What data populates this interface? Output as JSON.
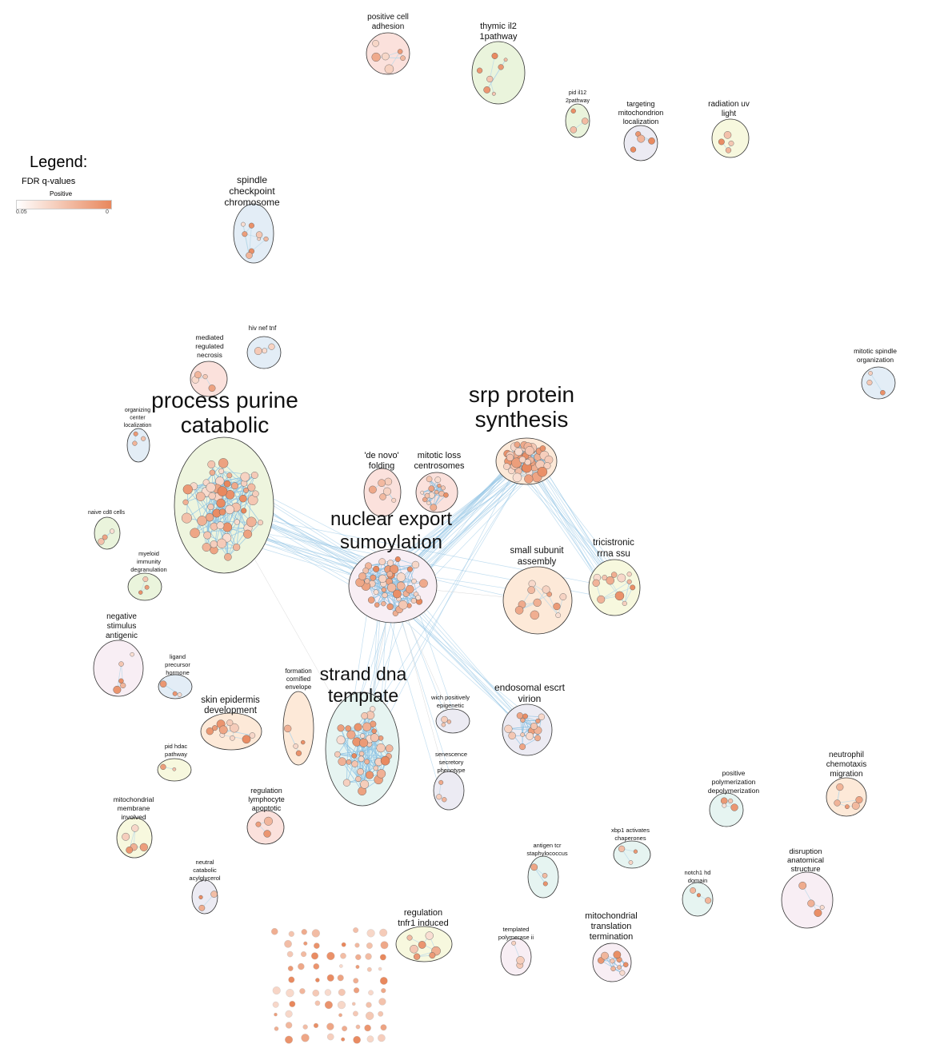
{
  "legend": {
    "title": "Legend:",
    "subtitle": "FDR q-values",
    "direction": "Positive",
    "scale_low": "0.05",
    "scale_high": "0",
    "color_low": "#ffffff",
    "color_high": "#e8875c"
  },
  "colors": {
    "node_border": "#555555",
    "edge": "#8fc3e3",
    "cluster_border": "#333333"
  },
  "clusters": [
    {
      "id": "positive-cell-adhesion",
      "label": [
        "positive cell",
        "adhesion"
      ],
      "fill": "#fbe1dc"
    },
    {
      "id": "thymic-il2-1pathway",
      "label": [
        "thymic il2",
        "1pathway"
      ],
      "fill": "#eaf4dc"
    },
    {
      "id": "pid-il12-2pathway",
      "label": [
        "pid il12",
        "2pathway"
      ],
      "fill": "#eaf4dc"
    },
    {
      "id": "targeting-mitochondrion-localization",
      "label": [
        "targeting",
        "mitochondrion",
        "localization"
      ],
      "fill": "#ecebf3"
    },
    {
      "id": "radiation-uv-light",
      "label": [
        "radiation uv",
        "light"
      ],
      "fill": "#f7f8de"
    },
    {
      "id": "spindle-checkpoint-chromosome",
      "label": [
        "spindle",
        "checkpoint",
        "chromosome"
      ],
      "fill": "#e3edf6"
    },
    {
      "id": "hiv-nef-tnf",
      "label": [
        "hiv nef tnf"
      ],
      "fill": "#e3edf6"
    },
    {
      "id": "mediated-regulated-necrosis",
      "label": [
        "mediated",
        "regulated",
        "necrosis"
      ],
      "fill": "#fbe1dc"
    },
    {
      "id": "mitotic-spindle-organization",
      "label": [
        "mitotic spindle",
        "organization"
      ],
      "fill": "#e3edf6"
    },
    {
      "id": "organizing-center-localization",
      "label": [
        "organizing",
        "center",
        "localization"
      ],
      "fill": "#e3edf6"
    },
    {
      "id": "process-purine-catabolic",
      "label": [
        "process purine",
        "catabolic"
      ],
      "fill": "#eef5de"
    },
    {
      "id": "srp-protein-synthesis",
      "label": [
        "srp protein",
        "synthesis"
      ],
      "fill": "#fde9d8"
    },
    {
      "id": "de-novo-folding",
      "label": [
        "'de novo'",
        "folding"
      ],
      "fill": "#fbe1dc"
    },
    {
      "id": "mitotic-loss-centrosomes",
      "label": [
        "mitotic loss",
        "centrosomes"
      ],
      "fill": "#fbe1dc"
    },
    {
      "id": "naive-cd8-cells",
      "label": [
        "naive cd8 cells"
      ],
      "fill": "#eaf4dc"
    },
    {
      "id": "nuclear-export-sumoylation",
      "label": [
        "nuclear export",
        "sumoylation"
      ],
      "fill": "#f8eef4"
    },
    {
      "id": "myeloid-immunity-degranulation",
      "label": [
        "myeloid",
        "immunity",
        "degranulation"
      ],
      "fill": "#eaf4dc"
    },
    {
      "id": "small-subunit-assembly",
      "label": [
        "small subunit",
        "assembly"
      ],
      "fill": "#fde9d8"
    },
    {
      "id": "tricistronic-rrna-ssu",
      "label": [
        "tricistronic",
        "rrna ssu"
      ],
      "fill": "#f7f8de"
    },
    {
      "id": "negative-stimulus-antigenic",
      "label": [
        "negative",
        "stimulus",
        "antigenic"
      ],
      "fill": "#f8eef4"
    },
    {
      "id": "ligand-precursor-hormone",
      "label": [
        "ligand",
        "precursor",
        "hormone"
      ],
      "fill": "#e3edf6"
    },
    {
      "id": "formation-cornified-envelope",
      "label": [
        "formation",
        "cornified",
        "envelope"
      ],
      "fill": "#fde9d8"
    },
    {
      "id": "strand-dna-template",
      "label": [
        "strand dna",
        "template"
      ],
      "fill": "#e6f4f1"
    },
    {
      "id": "skin-epidermis-development",
      "label": [
        "skin epidermis",
        "development"
      ],
      "fill": "#fde9d8"
    },
    {
      "id": "wich-positively-epigenetic",
      "label": [
        "wich positively",
        "epigenetic"
      ],
      "fill": "#ecebf3"
    },
    {
      "id": "endosomal-escrt-virion",
      "label": [
        "endosomal escrt",
        "virion"
      ],
      "fill": "#ecebf3"
    },
    {
      "id": "pid-hdac-pathway",
      "label": [
        "pid hdac",
        "pathway"
      ],
      "fill": "#f7f8de"
    },
    {
      "id": "senescence-secretory-phenotype",
      "label": [
        "senescence",
        "secretory",
        "phenotype"
      ],
      "fill": "#ecebf3"
    },
    {
      "id": "neutrophil-chemotaxis-migration",
      "label": [
        "neutrophil",
        "chemotaxis",
        "migration"
      ],
      "fill": "#fde9d8"
    },
    {
      "id": "positive-polymerization-depolymerization",
      "label": [
        "positive",
        "polymerization",
        "depolymerization"
      ],
      "fill": "#e6f4f1"
    },
    {
      "id": "mitochondrial-membrane-involved",
      "label": [
        "mitochondrial",
        "membrane",
        "involved"
      ],
      "fill": "#f7f8de"
    },
    {
      "id": "regulation-lymphocyte-apoptotic",
      "label": [
        "regulation",
        "lymphocyte",
        "apoptotic"
      ],
      "fill": "#fbe1dc"
    },
    {
      "id": "xbp1-activates-chaperones",
      "label": [
        "xbp1 activates",
        "chaperones"
      ],
      "fill": "#e6f4f1"
    },
    {
      "id": "antigen-tcr-staphylococcus",
      "label": [
        "antigen tcr",
        "staphylococcus"
      ],
      "fill": "#e6f4f1"
    },
    {
      "id": "neutral-catabolic-acylglycerol",
      "label": [
        "neutral",
        "catabolic",
        "acylglycerol"
      ],
      "fill": "#ecebf3"
    },
    {
      "id": "notch1-hd-domain",
      "label": [
        "notch1 hd",
        "domain"
      ],
      "fill": "#e6f4f1"
    },
    {
      "id": "disruption-anatomical-structure",
      "label": [
        "disruption",
        "anatomical",
        "structure"
      ],
      "fill": "#f8eef4"
    },
    {
      "id": "regulation-tnfr1-induced",
      "label": [
        "regulation",
        "tnfr1 induced"
      ],
      "fill": "#f7f8de"
    },
    {
      "id": "templated-polymerase-ii",
      "label": [
        "templated",
        "polymerase ii"
      ],
      "fill": "#f8eef4"
    },
    {
      "id": "mitochondrial-translation-termination",
      "label": [
        "mitochondrial",
        "translation",
        "termination"
      ],
      "fill": "#f8eef4"
    }
  ]
}
